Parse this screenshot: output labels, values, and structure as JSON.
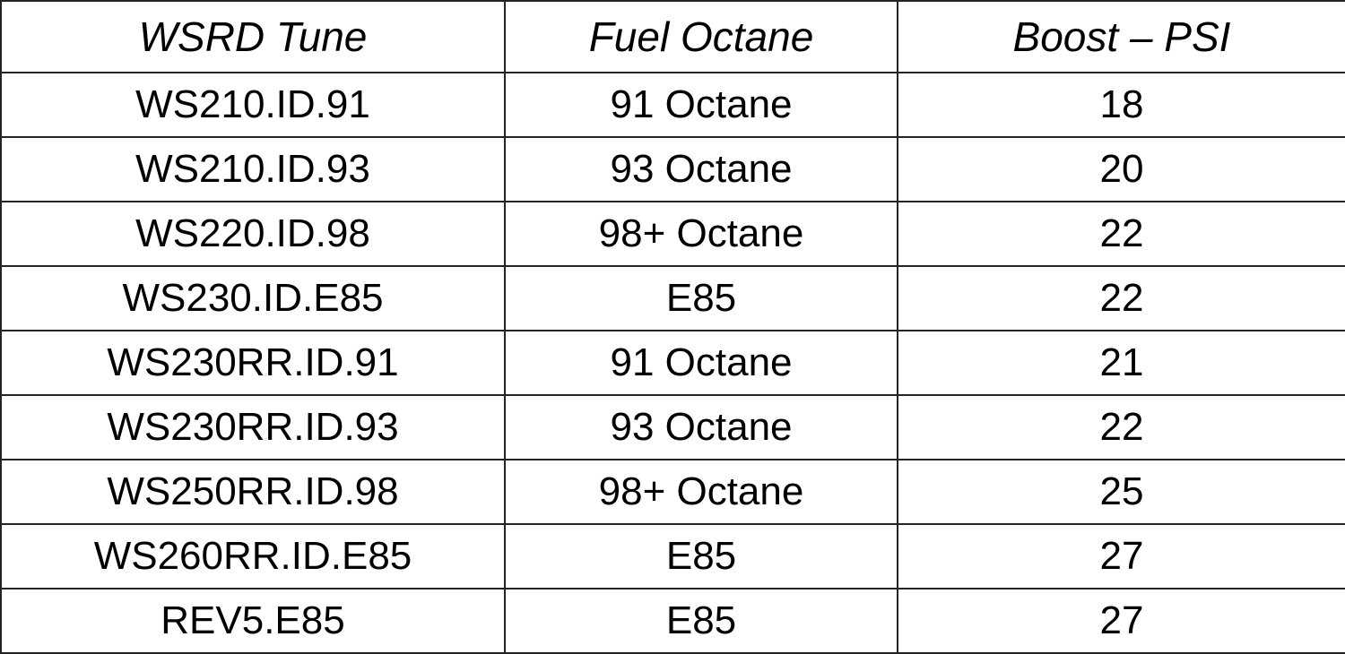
{
  "table": {
    "headers": [
      "WSRD Tune",
      "Fuel Octane",
      "Boost – PSI"
    ],
    "rows": [
      [
        "WS210.ID.91",
        "91 Octane",
        "18"
      ],
      [
        "WS210.ID.93",
        "93 Octane",
        "20"
      ],
      [
        "WS220.ID.98",
        "98+ Octane",
        "22"
      ],
      [
        "WS230.ID.E85",
        "E85",
        "22"
      ],
      [
        "WS230RR.ID.91",
        "91 Octane",
        "21"
      ],
      [
        "WS230RR.ID.93",
        "93 Octane",
        "22"
      ],
      [
        "WS250RR.ID.98",
        "98+ Octane",
        "25"
      ],
      [
        "WS260RR.ID.E85",
        "E85",
        "27"
      ],
      [
        "REV5.E85",
        "E85",
        "27"
      ]
    ]
  }
}
